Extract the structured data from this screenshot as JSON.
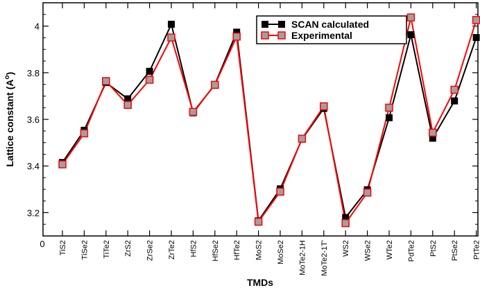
{
  "chart_data": {
    "type": "line",
    "xlabel": "TMDs",
    "ylabel": "Lattice constant (A",
    "ylabel_sup": "o",
    "ylabel_close": ")",
    "x_origin_label": "0",
    "ylim": [
      3.1,
      4.1
    ],
    "yticks": [
      3.2,
      3.4,
      3.6,
      3.8,
      4.0
    ],
    "ytick_labels": [
      "3.2",
      "3.4",
      "3.6",
      "3.8",
      "4"
    ],
    "categories": [
      "TiS2",
      "TiSe2",
      "TiTe2",
      "ZrS2",
      "ZrSe2",
      "ZrTe2",
      "HfS2",
      "HfSe2",
      "HfTe2",
      "MoS2",
      "MoSe2",
      "MoTe2-1H",
      "MoTe2-1T'",
      "WS2",
      "WSe2",
      "WTe2",
      "PdTe2",
      "PtS2",
      "PtSe2",
      "PtTe2"
    ],
    "grid": false,
    "legend": "top-right",
    "series": [
      {
        "name": "SCAN calculated",
        "color": "#000000",
        "marker_fill": "#000000",
        "values": [
          3.415,
          3.553,
          3.758,
          3.688,
          3.806,
          4.008,
          3.628,
          3.75,
          3.974,
          3.165,
          3.302,
          3.515,
          3.647,
          3.179,
          3.298,
          3.607,
          3.963,
          3.519,
          3.679,
          3.951
        ]
      },
      {
        "name": "Experimental",
        "color": "#ff0000",
        "marker_fill": "#a0a0a0",
        "values": [
          3.407,
          3.54,
          3.764,
          3.662,
          3.77,
          3.951,
          3.632,
          3.748,
          3.955,
          3.161,
          3.29,
          3.517,
          3.656,
          3.155,
          3.286,
          3.65,
          4.037,
          3.543,
          3.727,
          4.026
        ]
      }
    ]
  }
}
